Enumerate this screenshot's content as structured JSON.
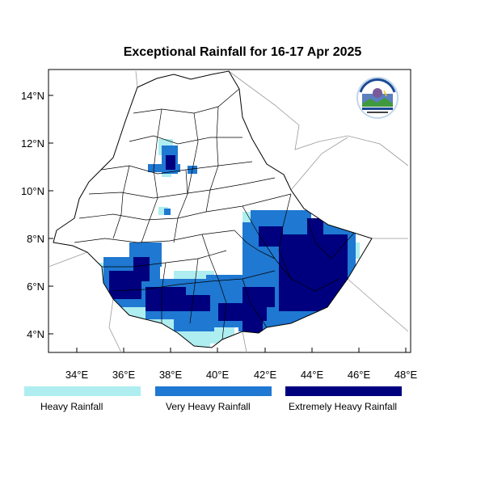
{
  "title": "Exceptional Rainfall for 16-17 Apr 2025",
  "x_ticks": [
    "34°E",
    "36°E",
    "38°E",
    "40°E",
    "42°E",
    "44°E",
    "46°E",
    "48°E"
  ],
  "y_ticks": [
    "4°N",
    "6°N",
    "8°N",
    "10°N",
    "12°N",
    "14°N"
  ],
  "legend": [
    {
      "label": "Heavy Rainfall",
      "color": "#aeeef0"
    },
    {
      "label": "Very Heavy Rainfall",
      "color": "#1f78d1"
    },
    {
      "label": "Extremely Heavy Rainfall",
      "color": "#00007f"
    }
  ],
  "logo_text": "ETHIOPIAN METEOROLOGY INSTITUTE",
  "colors": {
    "boundary": "#000000",
    "neighbor_boundary": "#9a9a9a"
  }
}
